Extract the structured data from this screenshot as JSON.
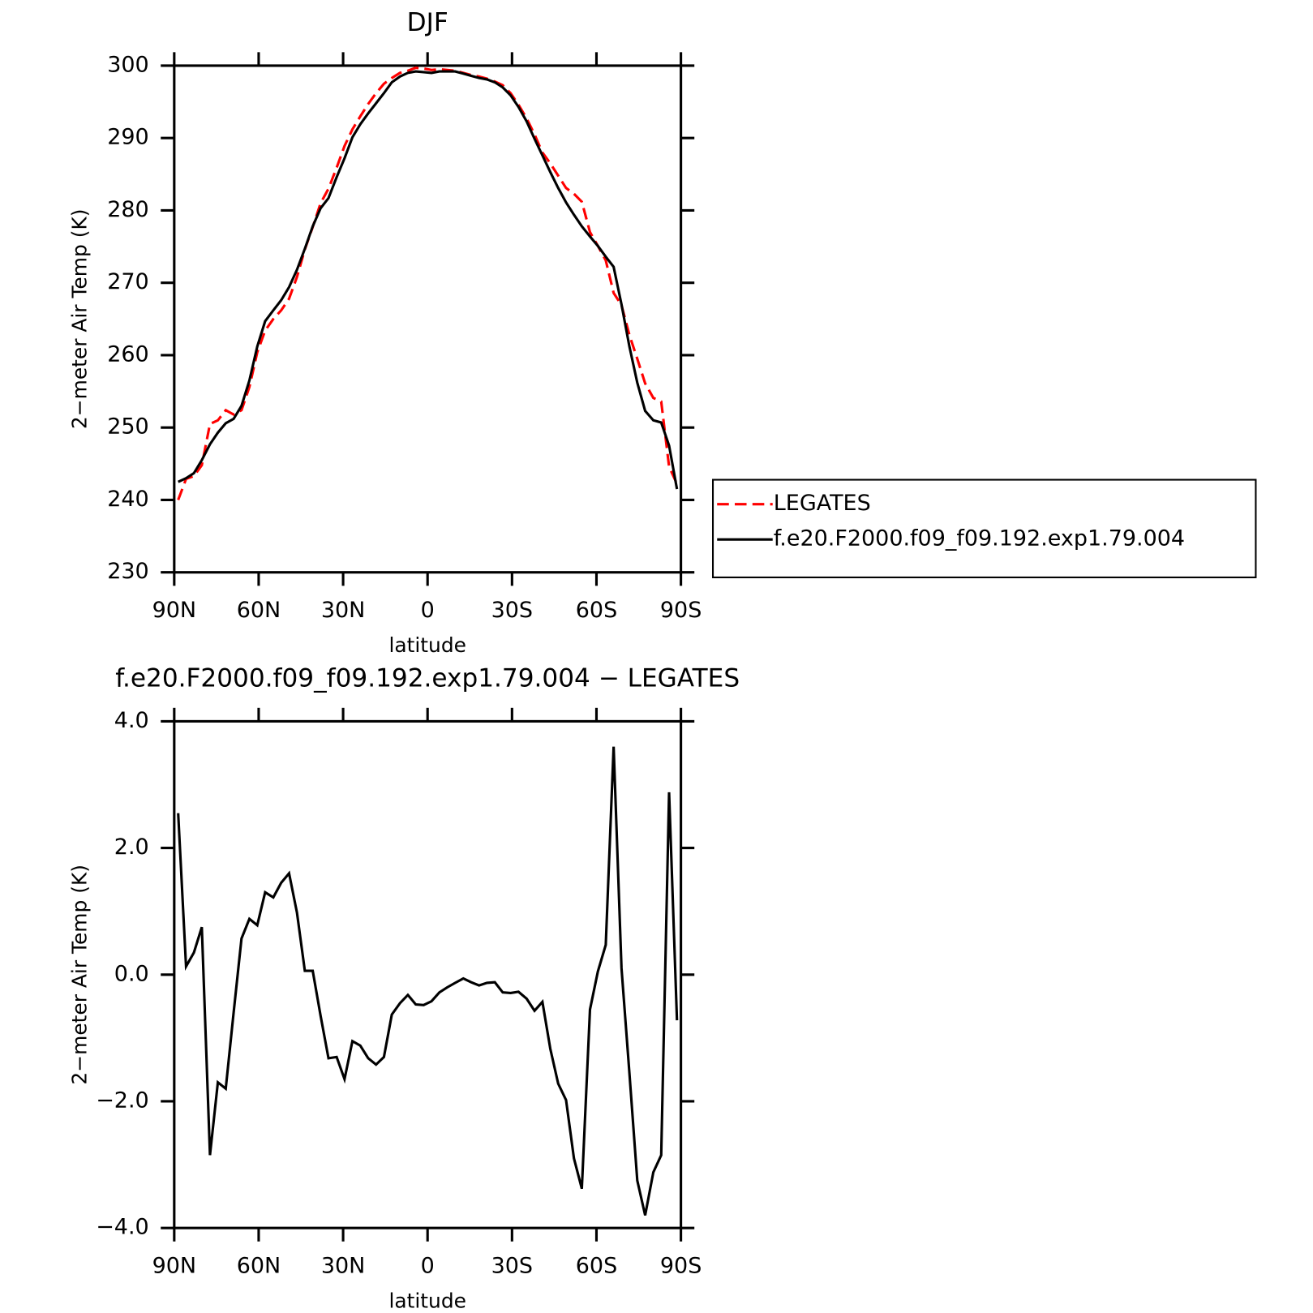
{
  "chart_data": [
    {
      "type": "line",
      "title": "DJF",
      "x_label": "latitude",
      "y_label": "2−meter Air Temp (K)",
      "x": [
        88.6,
        85.8,
        83.0,
        80.2,
        77.3,
        74.5,
        71.7,
        68.9,
        66.1,
        63.3,
        60.5,
        57.7,
        54.8,
        52.0,
        49.2,
        46.4,
        43.6,
        40.8,
        38.0,
        35.2,
        32.3,
        29.5,
        26.7,
        23.9,
        21.1,
        18.3,
        15.5,
        12.7,
        9.8,
        7.0,
        4.2,
        1.4,
        -1.4,
        -4.2,
        -7.0,
        -9.8,
        -12.7,
        -15.5,
        -18.3,
        -21.1,
        -23.9,
        -26.7,
        -29.5,
        -32.3,
        -35.2,
        -38.0,
        -40.8,
        -43.6,
        -46.4,
        -49.2,
        -52.0,
        -54.8,
        -57.7,
        -60.5,
        -63.3,
        -66.1,
        -68.9,
        -71.7,
        -74.5,
        -77.3,
        -80.2,
        -83.0,
        -85.8,
        -88.6
      ],
      "series": [
        {
          "name": "LEGATES",
          "color": "#ff0000",
          "dashed": true,
          "values": [
            240.0,
            242.9,
            243.3,
            244.8,
            250.5,
            251.0,
            252.4,
            251.8,
            252.4,
            255.6,
            260.4,
            263.4,
            265.0,
            266.2,
            267.8,
            270.8,
            274.6,
            277.7,
            281.0,
            283.0,
            285.9,
            288.9,
            291.2,
            293.0,
            294.7,
            296.2,
            297.5,
            298.3,
            299.0,
            299.3,
            299.7,
            299.6,
            299.4,
            299.5,
            299.4,
            299.3,
            299.0,
            298.7,
            298.5,
            298.2,
            297.8,
            297.3,
            296.2,
            294.6,
            292.7,
            290.5,
            288.0,
            286.5,
            284.8,
            283.1,
            282.3,
            281.2,
            277.0,
            275.1,
            273.1,
            268.6,
            266.9,
            262.8,
            259.5,
            256.1,
            254.1,
            253.6,
            244.6,
            242.2
          ]
        },
        {
          "name": "f.e20.F2000.f09_f09.192.exp1.79.004",
          "color": "#000000",
          "dashed": false,
          "values": [
            242.5,
            243.0,
            243.7,
            245.5,
            247.7,
            249.3,
            250.6,
            251.2,
            253.0,
            256.5,
            261.2,
            264.7,
            266.2,
            267.6,
            269.4,
            271.8,
            274.7,
            277.8,
            280.3,
            281.7,
            284.6,
            287.2,
            290.1,
            291.9,
            293.4,
            294.8,
            296.2,
            297.7,
            298.5,
            299.0,
            299.2,
            299.1,
            299.0,
            299.2,
            299.2,
            299.2,
            298.9,
            298.6,
            298.3,
            298.1,
            297.7,
            297.0,
            295.9,
            294.3,
            292.3,
            289.9,
            287.6,
            285.3,
            283.1,
            281.1,
            279.4,
            277.8,
            276.4,
            275.1,
            273.6,
            272.2,
            267.0,
            261.2,
            256.2,
            252.3,
            251.0,
            250.7,
            247.5,
            241.5
          ]
        }
      ],
      "xlim": [
        90,
        -90
      ],
      "xticks": [
        {
          "value": 90,
          "label": "90N"
        },
        {
          "value": 60,
          "label": "60N"
        },
        {
          "value": 30,
          "label": "30N"
        },
        0,
        {
          "value": -30,
          "label": "30S"
        },
        {
          "value": -60,
          "label": "60S"
        },
        {
          "value": -90,
          "label": "90S"
        }
      ],
      "ylim": [
        230,
        300
      ],
      "yticks": [
        230,
        240,
        250,
        260,
        270,
        280,
        290,
        300
      ],
      "legend": "right"
    },
    {
      "type": "line",
      "title": "f.e20.F2000.f09_f09.192.exp1.79.004 − LEGATES",
      "x_label": "latitude",
      "y_label": "2−meter Air Temp (K)",
      "x": [
        88.6,
        85.8,
        83.0,
        80.2,
        77.3,
        74.5,
        71.7,
        68.9,
        66.1,
        63.3,
        60.5,
        57.7,
        54.8,
        52.0,
        49.2,
        46.4,
        43.6,
        40.8,
        38.0,
        35.2,
        32.3,
        29.5,
        26.7,
        23.9,
        21.1,
        18.3,
        15.5,
        12.7,
        9.8,
        7.0,
        4.2,
        1.4,
        -1.4,
        -4.2,
        -7.0,
        -9.8,
        -12.7,
        -15.5,
        -18.3,
        -21.1,
        -23.9,
        -26.7,
        -29.5,
        -32.3,
        -35.2,
        -38.0,
        -40.8,
        -43.6,
        -46.4,
        -49.2,
        -52.0,
        -54.8,
        -57.7,
        -60.5,
        -63.3,
        -66.1,
        -68.9,
        -71.7,
        -74.5,
        -77.3,
        -80.2,
        -83.0,
        -85.8,
        -88.6
      ],
      "series": [
        {
          "color": "#000000",
          "dashed": false,
          "values": [
            2.55,
            0.13,
            0.35,
            0.75,
            -2.85,
            -1.7,
            -1.8,
            -0.6,
            0.57,
            0.88,
            0.78,
            1.3,
            1.22,
            1.45,
            1.6,
            0.98,
            0.06,
            0.06,
            -0.65,
            -1.32,
            -1.3,
            -1.65,
            -1.05,
            -1.12,
            -1.32,
            -1.42,
            -1.3,
            -0.63,
            -0.45,
            -0.32,
            -0.47,
            -0.48,
            -0.42,
            -0.28,
            -0.2,
            -0.13,
            -0.06,
            -0.12,
            -0.17,
            -0.13,
            -0.12,
            -0.28,
            -0.29,
            -0.27,
            -0.38,
            -0.57,
            -0.43,
            -1.17,
            -1.72,
            -1.98,
            -2.9,
            -3.38,
            -0.55,
            0.05,
            0.47,
            3.6,
            0.1,
            -1.55,
            -3.25,
            -3.8,
            -3.12,
            -2.85,
            2.88,
            -0.72
          ]
        }
      ],
      "xlim": [
        90,
        -90
      ],
      "xticks": [
        {
          "value": 90,
          "label": "90N"
        },
        {
          "value": 60,
          "label": "60N"
        },
        {
          "value": 30,
          "label": "30N"
        },
        0,
        {
          "value": -30,
          "label": "30S"
        },
        {
          "value": -60,
          "label": "60S"
        },
        {
          "value": -90,
          "label": "90S"
        }
      ],
      "ylim": [
        -4,
        4
      ],
      "yticks": [
        {
          "value": -4,
          "label": "−4.0"
        },
        {
          "value": -2,
          "label": "−2.0"
        },
        {
          "value": 0,
          "label": "0.0"
        },
        {
          "value": 2,
          "label": "2.0"
        },
        {
          "value": 4,
          "label": "4.0"
        }
      ]
    }
  ]
}
